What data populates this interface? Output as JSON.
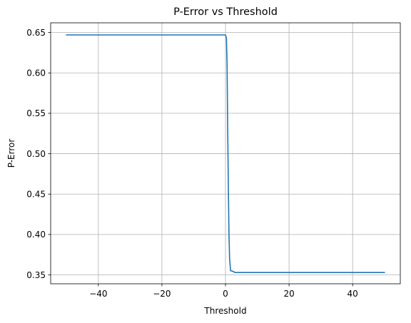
{
  "chart_data": {
    "type": "line",
    "title": "P-Error vs Threshold",
    "xlabel": "Threshold",
    "ylabel": "P-Error",
    "xlim": [
      -55,
      55
    ],
    "ylim": [
      0.339,
      0.662
    ],
    "xticks": [
      -40,
      -20,
      0,
      20,
      40
    ],
    "yticks": [
      0.35,
      0.4,
      0.45,
      0.5,
      0.55,
      0.6,
      0.65
    ],
    "grid": true,
    "line_color": "#1f77b4",
    "series": [
      {
        "x": [
          -50,
          0.0,
          0.3,
          0.5,
          0.7,
          0.9,
          1.1,
          1.3,
          1.6,
          2.0,
          2.5,
          3.0,
          50
        ],
        "y": [
          0.647,
          0.647,
          0.643,
          0.61,
          0.53,
          0.46,
          0.4,
          0.37,
          0.355,
          0.355,
          0.354,
          0.353,
          0.353
        ]
      }
    ]
  }
}
